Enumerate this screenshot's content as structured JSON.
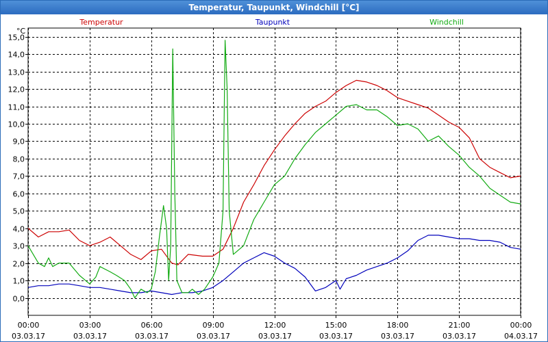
{
  "window": {
    "title": "Temperatur, Taupunkt, Windchill [°C]"
  },
  "chart_data": {
    "type": "line",
    "title": "Temperatur, Taupunkt, Windchill [°C]",
    "ylabel": "°C",
    "xlabel": "",
    "ylim": [
      -1,
      15.5
    ],
    "xlim": [
      0,
      24
    ],
    "grid": true,
    "legend_placement": "top",
    "y_ticks": [
      0,
      1,
      2,
      3,
      4,
      5,
      6,
      7,
      8,
      9,
      10,
      11,
      12,
      13,
      14,
      15
    ],
    "y_tick_labels": [
      "0,0",
      "1,0",
      "2,0",
      "3,0",
      "4,0",
      "5,0",
      "6,0",
      "7,0",
      "8,0",
      "9,0",
      "10,0",
      "11,0",
      "12,0",
      "13,0",
      "14,0",
      "15,0"
    ],
    "x_ticks": [
      0,
      3,
      6,
      9,
      12,
      15,
      18,
      21,
      24
    ],
    "x_tick_times": [
      "00:00",
      "03:00",
      "06:00",
      "09:00",
      "12:00",
      "15:00",
      "18:00",
      "21:00",
      "00:00"
    ],
    "x_tick_dates": [
      "03.03.17",
      "03.03.17",
      "03.03.17",
      "03.03.17",
      "03.03.17",
      "03.03.17",
      "03.03.17",
      "03.03.17",
      "04.03.17"
    ],
    "series": [
      {
        "name": "Temperatur",
        "color": "#cc0000",
        "points": [
          [
            0,
            4.0
          ],
          [
            0.5,
            3.5
          ],
          [
            1,
            3.8
          ],
          [
            1.5,
            3.8
          ],
          [
            2,
            3.9
          ],
          [
            2.5,
            3.3
          ],
          [
            3,
            3.0
          ],
          [
            3.5,
            3.2
          ],
          [
            4,
            3.5
          ],
          [
            4.5,
            3.0
          ],
          [
            5,
            2.5
          ],
          [
            5.5,
            2.2
          ],
          [
            6,
            2.7
          ],
          [
            6.5,
            2.8
          ],
          [
            7,
            2.0
          ],
          [
            7.3,
            1.9
          ],
          [
            7.8,
            2.5
          ],
          [
            8.5,
            2.4
          ],
          [
            9,
            2.4
          ],
          [
            9.5,
            2.8
          ],
          [
            10,
            4.0
          ],
          [
            10.5,
            5.5
          ],
          [
            11,
            6.5
          ],
          [
            11.5,
            7.6
          ],
          [
            12,
            8.5
          ],
          [
            12.5,
            9.3
          ],
          [
            13,
            10.0
          ],
          [
            13.5,
            10.6
          ],
          [
            14,
            11.0
          ],
          [
            14.5,
            11.3
          ],
          [
            15,
            11.8
          ],
          [
            15.5,
            12.2
          ],
          [
            16,
            12.5
          ],
          [
            16.5,
            12.4
          ],
          [
            17,
            12.2
          ],
          [
            17.5,
            11.9
          ],
          [
            18,
            11.5
          ],
          [
            18.5,
            11.3
          ],
          [
            19,
            11.1
          ],
          [
            19.5,
            10.9
          ],
          [
            20,
            10.5
          ],
          [
            20.5,
            10.1
          ],
          [
            21,
            9.8
          ],
          [
            21.5,
            9.2
          ],
          [
            22,
            8.0
          ],
          [
            22.5,
            7.5
          ],
          [
            23,
            7.2
          ],
          [
            23.5,
            6.9
          ],
          [
            24,
            7.0
          ]
        ]
      },
      {
        "name": "Taupunkt",
        "color": "#0000bb",
        "points": [
          [
            0,
            0.6
          ],
          [
            0.5,
            0.7
          ],
          [
            1,
            0.7
          ],
          [
            1.5,
            0.8
          ],
          [
            2,
            0.8
          ],
          [
            2.5,
            0.7
          ],
          [
            3,
            0.6
          ],
          [
            3.5,
            0.6
          ],
          [
            4,
            0.5
          ],
          [
            4.5,
            0.4
          ],
          [
            5,
            0.3
          ],
          [
            5.5,
            0.3
          ],
          [
            6,
            0.4
          ],
          [
            6.5,
            0.3
          ],
          [
            7,
            0.2
          ],
          [
            7.5,
            0.3
          ],
          [
            8,
            0.3
          ],
          [
            8.5,
            0.4
          ],
          [
            9,
            0.6
          ],
          [
            9.5,
            1.0
          ],
          [
            10,
            1.5
          ],
          [
            10.5,
            2.0
          ],
          [
            11,
            2.3
          ],
          [
            11.5,
            2.6
          ],
          [
            12,
            2.4
          ],
          [
            12.5,
            2.0
          ],
          [
            13,
            1.7
          ],
          [
            13.5,
            1.2
          ],
          [
            14,
            0.4
          ],
          [
            14.5,
            0.6
          ],
          [
            15,
            1.0
          ],
          [
            15.2,
            0.5
          ],
          [
            15.5,
            1.1
          ],
          [
            16,
            1.3
          ],
          [
            16.5,
            1.6
          ],
          [
            17,
            1.8
          ],
          [
            17.5,
            2.0
          ],
          [
            18,
            2.3
          ],
          [
            18.5,
            2.7
          ],
          [
            19,
            3.3
          ],
          [
            19.5,
            3.6
          ],
          [
            20,
            3.6
          ],
          [
            20.5,
            3.5
          ],
          [
            21,
            3.4
          ],
          [
            21.5,
            3.4
          ],
          [
            22,
            3.3
          ],
          [
            22.5,
            3.3
          ],
          [
            23,
            3.2
          ],
          [
            23.5,
            2.9
          ],
          [
            24,
            2.8
          ]
        ]
      },
      {
        "name": "Windchill",
        "color": "#11aa11",
        "points": [
          [
            0,
            3.0
          ],
          [
            0.5,
            2.0
          ],
          [
            0.8,
            1.8
          ],
          [
            1,
            2.3
          ],
          [
            1.2,
            1.8
          ],
          [
            1.5,
            2.0
          ],
          [
            2,
            2.0
          ],
          [
            2.5,
            1.3
          ],
          [
            3,
            0.8
          ],
          [
            3.3,
            1.2
          ],
          [
            3.5,
            1.8
          ],
          [
            4,
            1.5
          ],
          [
            4.3,
            1.3
          ],
          [
            4.7,
            1.0
          ],
          [
            5,
            0.5
          ],
          [
            5.2,
            0.0
          ],
          [
            5.5,
            0.5
          ],
          [
            5.8,
            0.3
          ],
          [
            6,
            0.5
          ],
          [
            6.2,
            1.5
          ],
          [
            6.4,
            3.5
          ],
          [
            6.6,
            5.3
          ],
          [
            6.75,
            4.0
          ],
          [
            6.85,
            1.0
          ],
          [
            6.95,
            3.0
          ],
          [
            7.05,
            14.3
          ],
          [
            7.15,
            6.0
          ],
          [
            7.25,
            1.0
          ],
          [
            7.5,
            0.3
          ],
          [
            7.8,
            0.3
          ],
          [
            8,
            0.5
          ],
          [
            8.3,
            0.2
          ],
          [
            8.6,
            0.5
          ],
          [
            9,
            1.2
          ],
          [
            9.3,
            2.0
          ],
          [
            9.5,
            5.0
          ],
          [
            9.6,
            14.8
          ],
          [
            9.7,
            12.0
          ],
          [
            9.8,
            5.0
          ],
          [
            10,
            2.5
          ],
          [
            10.5,
            3.0
          ],
          [
            11,
            4.5
          ],
          [
            11.5,
            5.5
          ],
          [
            12,
            6.5
          ],
          [
            12.5,
            7.0
          ],
          [
            13,
            8.0
          ],
          [
            13.5,
            8.8
          ],
          [
            14,
            9.5
          ],
          [
            14.5,
            10.0
          ],
          [
            15,
            10.5
          ],
          [
            15.5,
            11.0
          ],
          [
            16,
            11.1
          ],
          [
            16.5,
            10.8
          ],
          [
            17,
            10.8
          ],
          [
            17.5,
            10.4
          ],
          [
            18,
            9.9
          ],
          [
            18.5,
            10.0
          ],
          [
            19,
            9.7
          ],
          [
            19.5,
            9.0
          ],
          [
            20,
            9.3
          ],
          [
            20.5,
            8.7
          ],
          [
            21,
            8.2
          ],
          [
            21.5,
            7.5
          ],
          [
            22,
            7.0
          ],
          [
            22.5,
            6.3
          ],
          [
            23,
            5.9
          ],
          [
            23.5,
            5.5
          ],
          [
            24,
            5.4
          ]
        ]
      }
    ]
  }
}
